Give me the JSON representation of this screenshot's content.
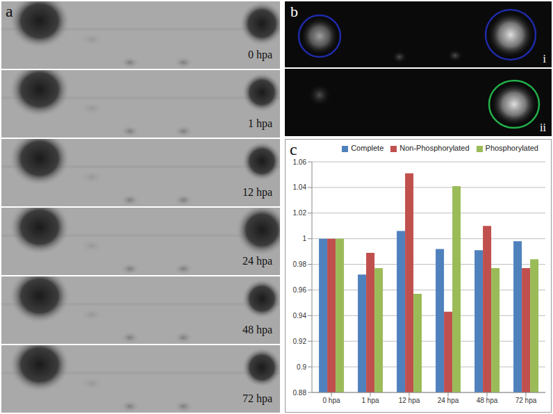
{
  "panel_labels": [
    "a",
    "b",
    "c"
  ],
  "panel_a": {
    "strip_labels": [
      "0 hpa",
      "1 hpa",
      "12 hpa",
      "24 hpa",
      "48 hpa",
      "72 hpa"
    ]
  },
  "panel_b": {
    "subpanel_labels": [
      "i",
      "ii"
    ]
  },
  "chart_data": {
    "type": "bar",
    "categories": [
      "0 hpa",
      "1 hpa",
      "12 hpa",
      "24 hpa",
      "48 hpa",
      "72 hpa"
    ],
    "series": [
      {
        "name": "Complete",
        "color": "#4f81bd",
        "values": [
          1,
          0.972,
          1.006,
          0.992,
          0.991,
          0.998
        ]
      },
      {
        "name": "Non-Phosphorylated",
        "color": "#c0504d",
        "values": [
          1,
          0.989,
          1.051,
          0.943,
          1.01,
          0.977
        ]
      },
      {
        "name": "Phosphorylated",
        "color": "#9bbb59",
        "values": [
          1,
          0.977,
          0.957,
          1.041,
          0.977,
          0.984
        ]
      }
    ],
    "ylim": [
      0.88,
      1.06
    ],
    "yticks": [
      0.88,
      0.9,
      0.92,
      0.94,
      0.96,
      0.98,
      1,
      1.02,
      1.04,
      1.06
    ],
    "grid": true,
    "legend": "top"
  }
}
